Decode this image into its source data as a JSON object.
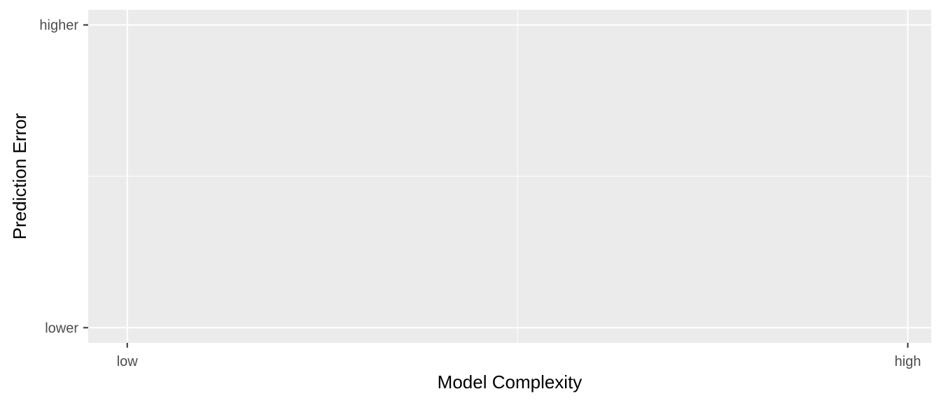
{
  "chart_data": {
    "type": "line",
    "title": "",
    "xlabel": "Model Complexity",
    "ylabel": "Prediction Error",
    "x_ticks": [
      {
        "value": 0,
        "label": "low"
      },
      {
        "value": 1,
        "label": "high"
      }
    ],
    "y_ticks": [
      {
        "value": 0,
        "label": "lower"
      },
      {
        "value": 1,
        "label": "higher"
      }
    ],
    "xlim": [
      -0.05,
      1.03
    ],
    "ylim": [
      -0.05,
      1.05
    ],
    "series": [],
    "grid": true,
    "legend": "none",
    "colors": {
      "panel_background": "#ebebeb",
      "grid_line": "#ffffff",
      "tick_mark": "#333333",
      "tick_label": "#4d4d4d",
      "axis_title": "#000000"
    }
  }
}
